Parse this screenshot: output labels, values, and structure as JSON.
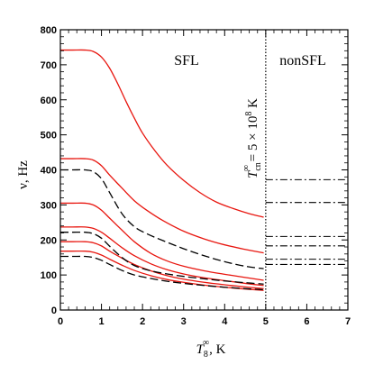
{
  "chart_data": {
    "type": "line",
    "xlabel_main": "T",
    "xlabel_sub": "8",
    "xlabel_sup": "∞",
    "xlabel_unit": ",  K",
    "ylabel": "ν,  Hz",
    "xlim": [
      0,
      7
    ],
    "ylim": [
      0,
      800
    ],
    "xticks": [
      "0",
      "1",
      "2",
      "3",
      "4",
      "5",
      "6",
      "7"
    ],
    "yticks": [
      "0",
      "100",
      "200",
      "300",
      "400",
      "500",
      "600",
      "700",
      "800"
    ],
    "regions": {
      "left": "SFL",
      "right": "nonSFL"
    },
    "boundary_x": 5,
    "annotation": {
      "main": "T",
      "sub": "cn",
      "sup": "∞",
      "rest": " = 5 × 10",
      "exp": "8",
      "unit": " K"
    },
    "colors": {
      "red": "#e8160f",
      "black": "#000000"
    },
    "red_series": [
      {
        "x": [
          0,
          0.3,
          0.6,
          0.8,
          1.0,
          1.2,
          1.4,
          1.6,
          1.8,
          2.0,
          2.3,
          2.6,
          3.0,
          3.4,
          3.8,
          4.2,
          4.6,
          4.95
        ],
        "y": [
          742,
          742,
          742,
          738,
          722,
          690,
          645,
          595,
          548,
          505,
          455,
          413,
          370,
          335,
          308,
          290,
          275,
          265
        ]
      },
      {
        "x": [
          0,
          0.3,
          0.6,
          0.8,
          1.0,
          1.2,
          1.5,
          1.8,
          2.1,
          2.5,
          3.0,
          3.5,
          4.0,
          4.5,
          4.95
        ],
        "y": [
          432,
          432,
          432,
          428,
          412,
          385,
          348,
          312,
          285,
          255,
          225,
          203,
          186,
          173,
          163
        ]
      },
      {
        "x": [
          0,
          0.3,
          0.6,
          0.8,
          1.0,
          1.2,
          1.5,
          1.8,
          2.2,
          2.6,
          3.0,
          3.5,
          4.0,
          4.5,
          4.95
        ],
        "y": [
          305,
          305,
          305,
          300,
          285,
          262,
          228,
          195,
          162,
          140,
          125,
          112,
          102,
          93,
          85
        ]
      },
      {
        "x": [
          0,
          0.3,
          0.6,
          0.8,
          1.0,
          1.2,
          1.5,
          1.8,
          2.2,
          2.6,
          3.0,
          3.5,
          4.0,
          4.5,
          4.95
        ],
        "y": [
          237,
          237,
          237,
          233,
          222,
          205,
          178,
          155,
          132,
          115,
          103,
          92,
          84,
          76,
          70
        ]
      },
      {
        "x": [
          0,
          0.3,
          0.6,
          0.8,
          1.0,
          1.2,
          1.5,
          1.8,
          2.2,
          2.6,
          3.0,
          3.5,
          4.0,
          4.5,
          4.95
        ],
        "y": [
          195,
          195,
          195,
          192,
          183,
          168,
          148,
          130,
          112,
          98,
          88,
          79,
          72,
          66,
          61
        ]
      },
      {
        "x": [
          0,
          0.3,
          0.6,
          0.8,
          1.0,
          1.2,
          1.5,
          1.8,
          2.2,
          2.6,
          3.0,
          3.5,
          4.0,
          4.5,
          4.95
        ],
        "y": [
          168,
          168,
          168,
          165,
          157,
          145,
          128,
          113,
          98,
          87,
          79,
          71,
          65,
          60,
          56
        ]
      }
    ],
    "black_dashed_series": [
      {
        "x": [
          0,
          0.3,
          0.6,
          0.8,
          1.0,
          1.2,
          1.5,
          1.8,
          2.1,
          2.5,
          3.0,
          3.5,
          4.0,
          4.5,
          4.95
        ],
        "y": [
          400,
          400,
          400,
          395,
          375,
          335,
          275,
          238,
          218,
          198,
          175,
          155,
          138,
          125,
          118
        ]
      },
      {
        "x": [
          0,
          0.3,
          0.6,
          0.8,
          1.0,
          1.2,
          1.5,
          1.8,
          2.2,
          2.6,
          3.0,
          3.5,
          4.0,
          4.5,
          4.95
        ],
        "y": [
          222,
          222,
          222,
          218,
          205,
          182,
          150,
          127,
          112,
          103,
          96,
          89,
          83,
          78,
          74
        ]
      },
      {
        "x": [
          0,
          0.3,
          0.6,
          0.8,
          1.0,
          1.2,
          1.5,
          1.8,
          2.2,
          2.6,
          3.0,
          3.5,
          4.0,
          4.5,
          4.95
        ],
        "y": [
          153,
          153,
          153,
          150,
          142,
          130,
          113,
          100,
          90,
          82,
          76,
          70,
          65,
          61,
          58
        ]
      }
    ],
    "nonsfl_levels": [
      372,
      307,
      210,
      183,
      145,
      130
    ]
  }
}
